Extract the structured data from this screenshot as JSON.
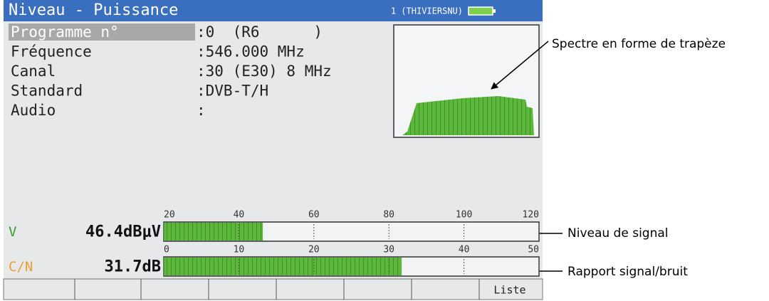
{
  "header": {
    "title": "Niveau - Puissance",
    "status": "1 (THIVIERSNU)"
  },
  "fields": [
    {
      "label": "Programme n°",
      "value": ":0  (R6      )"
    },
    {
      "label": "Fréquence",
      "value": ":546.000 MHz"
    },
    {
      "label": "Canal",
      "value": ":30 (E30) 8 MHz"
    },
    {
      "label": "Standard",
      "value": ":DVB-T/H"
    },
    {
      "label": "Audio",
      "value": ":"
    }
  ],
  "gauges": [
    {
      "label": "V",
      "reading": "46.4dBμV",
      "value": 46.4,
      "lim": [
        20,
        120
      ],
      "ticks": [
        20,
        40,
        60,
        80,
        100,
        120
      ],
      "label_color": "#3a9a2a"
    },
    {
      "label": "C/N",
      "reading": "31.7dB",
      "value": 31.7,
      "lim": [
        0,
        50
      ],
      "ticks": [
        0,
        10,
        20,
        30,
        40,
        50
      ],
      "label_color": "#e8a030"
    }
  ],
  "softkeys": [
    "Liste"
  ],
  "annotations": [
    "Spectre en forme de trapèze",
    "Niveau de signal",
    "Rapport signal/bruit"
  ]
}
